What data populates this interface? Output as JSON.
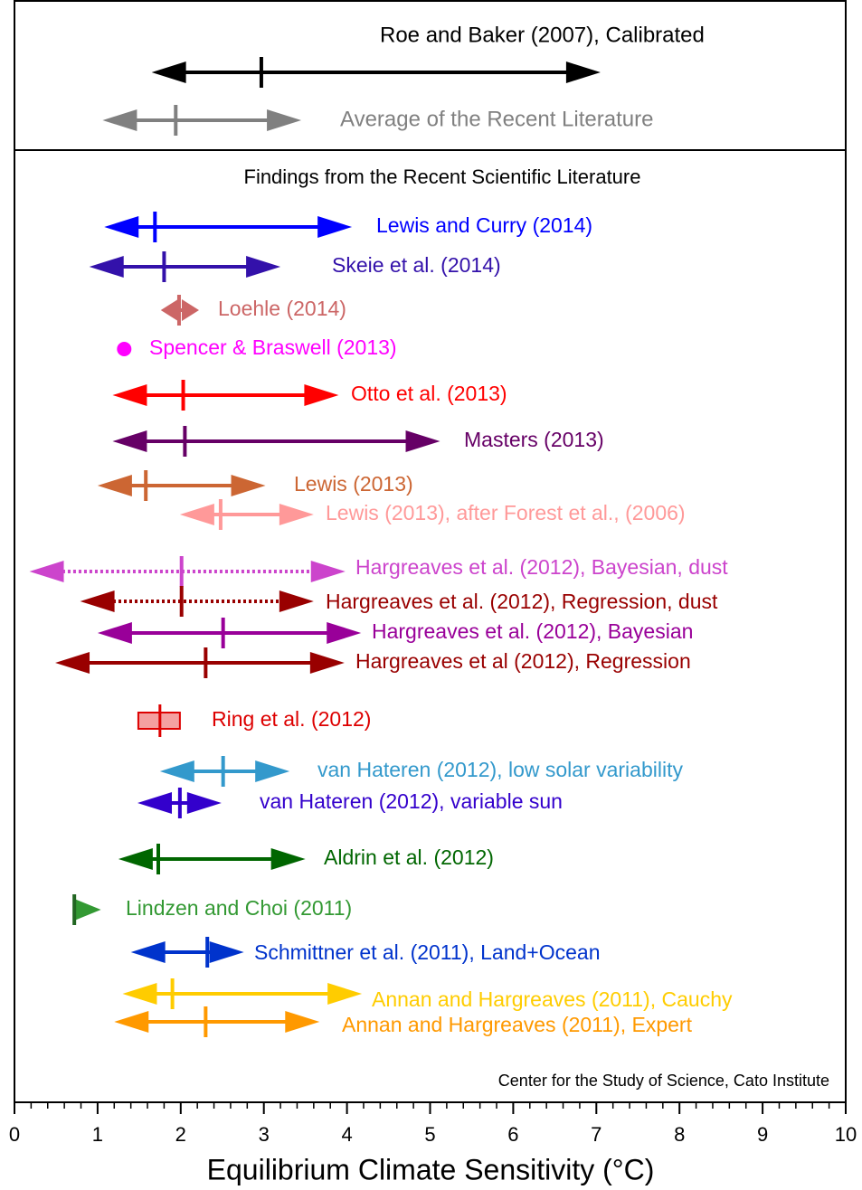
{
  "chart_data": {
    "type": "range",
    "subtitle": "Findings from the Recent Scientific Literature",
    "source": "Center for the Study of Science, Cato Institute",
    "xlabel": "Equilibrium Climate Sensitivity (°C)",
    "xlim": [
      0,
      10
    ],
    "xticks": [
      0,
      1,
      2,
      3,
      4,
      5,
      6,
      7,
      8,
      9,
      10
    ],
    "xminorticks": [
      0.2,
      0.4,
      0.6,
      0.8,
      1.2,
      1.4,
      1.6,
      1.8,
      2.2,
      2.4,
      2.6,
      2.8,
      3.2,
      3.4,
      3.6,
      3.8,
      4.2,
      4.4,
      4.6,
      4.8,
      5.2,
      5.4,
      5.6,
      5.8,
      6.2,
      6.4,
      6.6,
      6.8,
      7.2,
      7.4,
      7.6,
      7.8,
      8.2,
      8.4,
      8.6,
      8.8,
      9.2,
      9.4,
      9.6,
      9.8
    ],
    "summary": [
      {
        "name": "Roe and Baker (2007), Calibrated",
        "color": "#000000",
        "low": 1.65,
        "best": 2.97,
        "high": 7.05
      },
      {
        "name": "Average of the Recent Literature",
        "color": "#808080",
        "low": 1.06,
        "best": 1.94,
        "high": 3.45
      }
    ],
    "series": [
      {
        "name": "Lewis and Curry (2014)",
        "color": "#0000ff",
        "low": 1.08,
        "best": 1.69,
        "high": 4.06
      },
      {
        "name": "Skeie et al. (2014)",
        "color": "#3311aa",
        "low": 0.9,
        "best": 1.8,
        "high": 3.2
      },
      {
        "name": "Loehle (2014)",
        "color": "#cc6666",
        "low": 1.76,
        "best": 1.98,
        "high": 2.22
      },
      {
        "name": "Spencer & Braswell (2013)",
        "color": "#ff00ff",
        "best": 1.32,
        "style": "point"
      },
      {
        "name": "Otto et al. (2013)",
        "color": "#ff0000",
        "low": 1.18,
        "best": 2.03,
        "high": 3.9
      },
      {
        "name": "Masters (2013)",
        "color": "#660066",
        "low": 1.18,
        "best": 2.05,
        "high": 5.12
      },
      {
        "name": "Lewis (2013)",
        "color": "#cc6633",
        "low": 1.0,
        "best": 1.58,
        "high": 3.02
      },
      {
        "name": "Lewis (2013), after Forest et al., (2006)",
        "color": "#ff9999",
        "low": 1.99,
        "best": 2.48,
        "high": 3.6
      },
      {
        "name": "Hargreaves et al. (2012), Bayesian, dust",
        "color": "#cc44cc",
        "low": 0.18,
        "best": 2.01,
        "high": 3.98,
        "style": "dotted"
      },
      {
        "name": "Hargreaves et al. (2012), Regression, dust",
        "color": "#990000",
        "low": 0.79,
        "best": 2.01,
        "high": 3.6,
        "style": "dotted"
      },
      {
        "name": "Hargreaves et al. (2012), Bayesian",
        "color": "#990099",
        "low": 1.0,
        "best": 2.51,
        "high": 4.17
      },
      {
        "name": "Hargreaves et al (2012), Regression",
        "color": "#990000",
        "low": 0.49,
        "best": 2.3,
        "high": 3.97
      },
      {
        "name": "Ring et al. (2012)",
        "color": "#dd0000",
        "fill": "#f4a0a0",
        "low": 1.49,
        "best": 1.75,
        "high": 1.99,
        "style": "box"
      },
      {
        "name": "van Hateren (2012), low solar variability",
        "color": "#3399cc",
        "low": 1.75,
        "best": 2.51,
        "high": 3.31
      },
      {
        "name": "van Hateren (2012), variable sun",
        "color": "#3300cc",
        "low": 1.48,
        "best": 1.99,
        "high": 2.49
      },
      {
        "name": "Aldrin et al. (2012)",
        "color": "#006600",
        "low": 1.25,
        "best": 1.73,
        "high": 3.5
      },
      {
        "name": "Lindzen and Choi  (2011)",
        "color": "#339933",
        "best": 0.72,
        "high": 1.04
      },
      {
        "name": "Schmittner et al.  (2011), Land+Ocean",
        "color": "#0033cc",
        "low": 1.4,
        "best": 2.32,
        "high": 2.76
      },
      {
        "name": "Annan and Hargreaves (2011), Cauchy",
        "color": "#ffcc00",
        "low": 1.3,
        "best": 1.9,
        "high": 4.18
      },
      {
        "name": "Annan and Hargreaves (2011), Expert",
        "color": "#ff9900",
        "low": 1.2,
        "best": 2.3,
        "high": 3.67
      }
    ]
  }
}
